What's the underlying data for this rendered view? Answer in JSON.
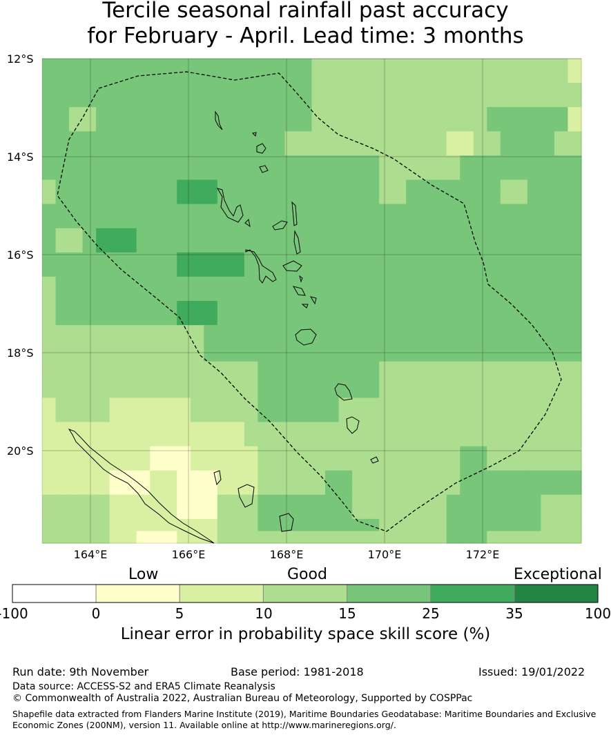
{
  "title": {
    "line1": "Tercile seasonal rainfall past accuracy",
    "line2": "for February - April. Lead time: 3 months"
  },
  "map": {
    "lat_labels": [
      "12°S",
      "14°S",
      "16°S",
      "18°S",
      "20°S"
    ],
    "lon_labels": [
      "164°E",
      "166°E",
      "168°E",
      "170°E",
      "172°E"
    ],
    "grid_rows": [
      "3333333333333333333322222222222222222221",
      "3333333333333333333322222222222222222221",
      "3333333333333333333322222222222222222222",
      "3333333333333333333322222222222222222222",
      "3322333333333333333322222222222223333331",
      "3322333333333333333322222222222223333331",
      "3333333333333333332222222222221122333322",
      "3333333333333333332222222222221122333322",
      "3333333333333333333333333222222333333333",
      "3333333333333333333333333222222333333333",
      "2333333333444333333333333223333333223333",
      "2333333333444333333333333223333333223333",
      "3333333333333333333333333333333333333333",
      "3333333333333333333333333333333333333333",
      "3223444333333333333333333333333333333333",
      "3223444333333333333333333333333333333333",
      "3333333333444443333333333333333333333333",
      "3333333333444443333333333333333333333333",
      "2333333333333333333333333333333333333333",
      "2333333333333333333333333333333333333333",
      "2333333333444333333333333333333333333333",
      "2333333333444333333333333333333333333333",
      "2222222222223333333333333333333333333333",
      "2222222222223333333333333333333333333333",
      "2222222222223333333333333333333333333333",
      "2222222222222222333333333222222222222222",
      "2222222222222222333333333222222222222222",
      "2222222222222222333333333222222222222222",
      "1222211111122222333333222222222222222222",
      "1222211111122222333333222222222222222222",
      "1111111111111112222222222222222222222222",
      "1111111111111112222222222222222222222222",
      "1111111100011111222222222222222332222222",
      "1111111100011111222222222222222332222222",
      "1111100011000111222223322222222333333333",
      "1111100011000111222223322222222333333333",
      "2222211111000222333333322222223333333222",
      "2222211111000222333333322222223333333222",
      "2222211111111222333333333222223333333222",
      "2222211000111222222222222222223332222222"
    ]
  },
  "colorbar": {
    "header_labels": [
      "Low",
      "Good",
      "Exceptional"
    ],
    "tick_labels": [
      "-100",
      "0",
      "5",
      "10",
      "15",
      "25",
      "35",
      "100"
    ],
    "colors": [
      "#ffffff",
      "#ffffcc",
      "#d9f0a3",
      "#addd8e",
      "#78c679",
      "#41ab5d",
      "#238443"
    ],
    "title": "Linear error in probability space skill score (%)"
  },
  "info": {
    "run_date": "Run date: 9th November",
    "base_period": "Base period: 1981-2018",
    "issued": "Issued: 19/01/2022",
    "data_source": "Data source: ACCESS-S2 and ERA5 Climate Reanalysis",
    "copyright": "© Commonwealth of Australia 2022, Australian Bureau of Meteorology, Supported by COSPPac",
    "shapefile_line1": "Shapefile data extracted from Flanders Marine Institute (2019), Maritime Boundaries Geodatabase: Maritime Boundaries and Exclusive",
    "shapefile_line2": "Economic Zones (200NM), version 11. Available online at http://www.marineregions.org/."
  }
}
